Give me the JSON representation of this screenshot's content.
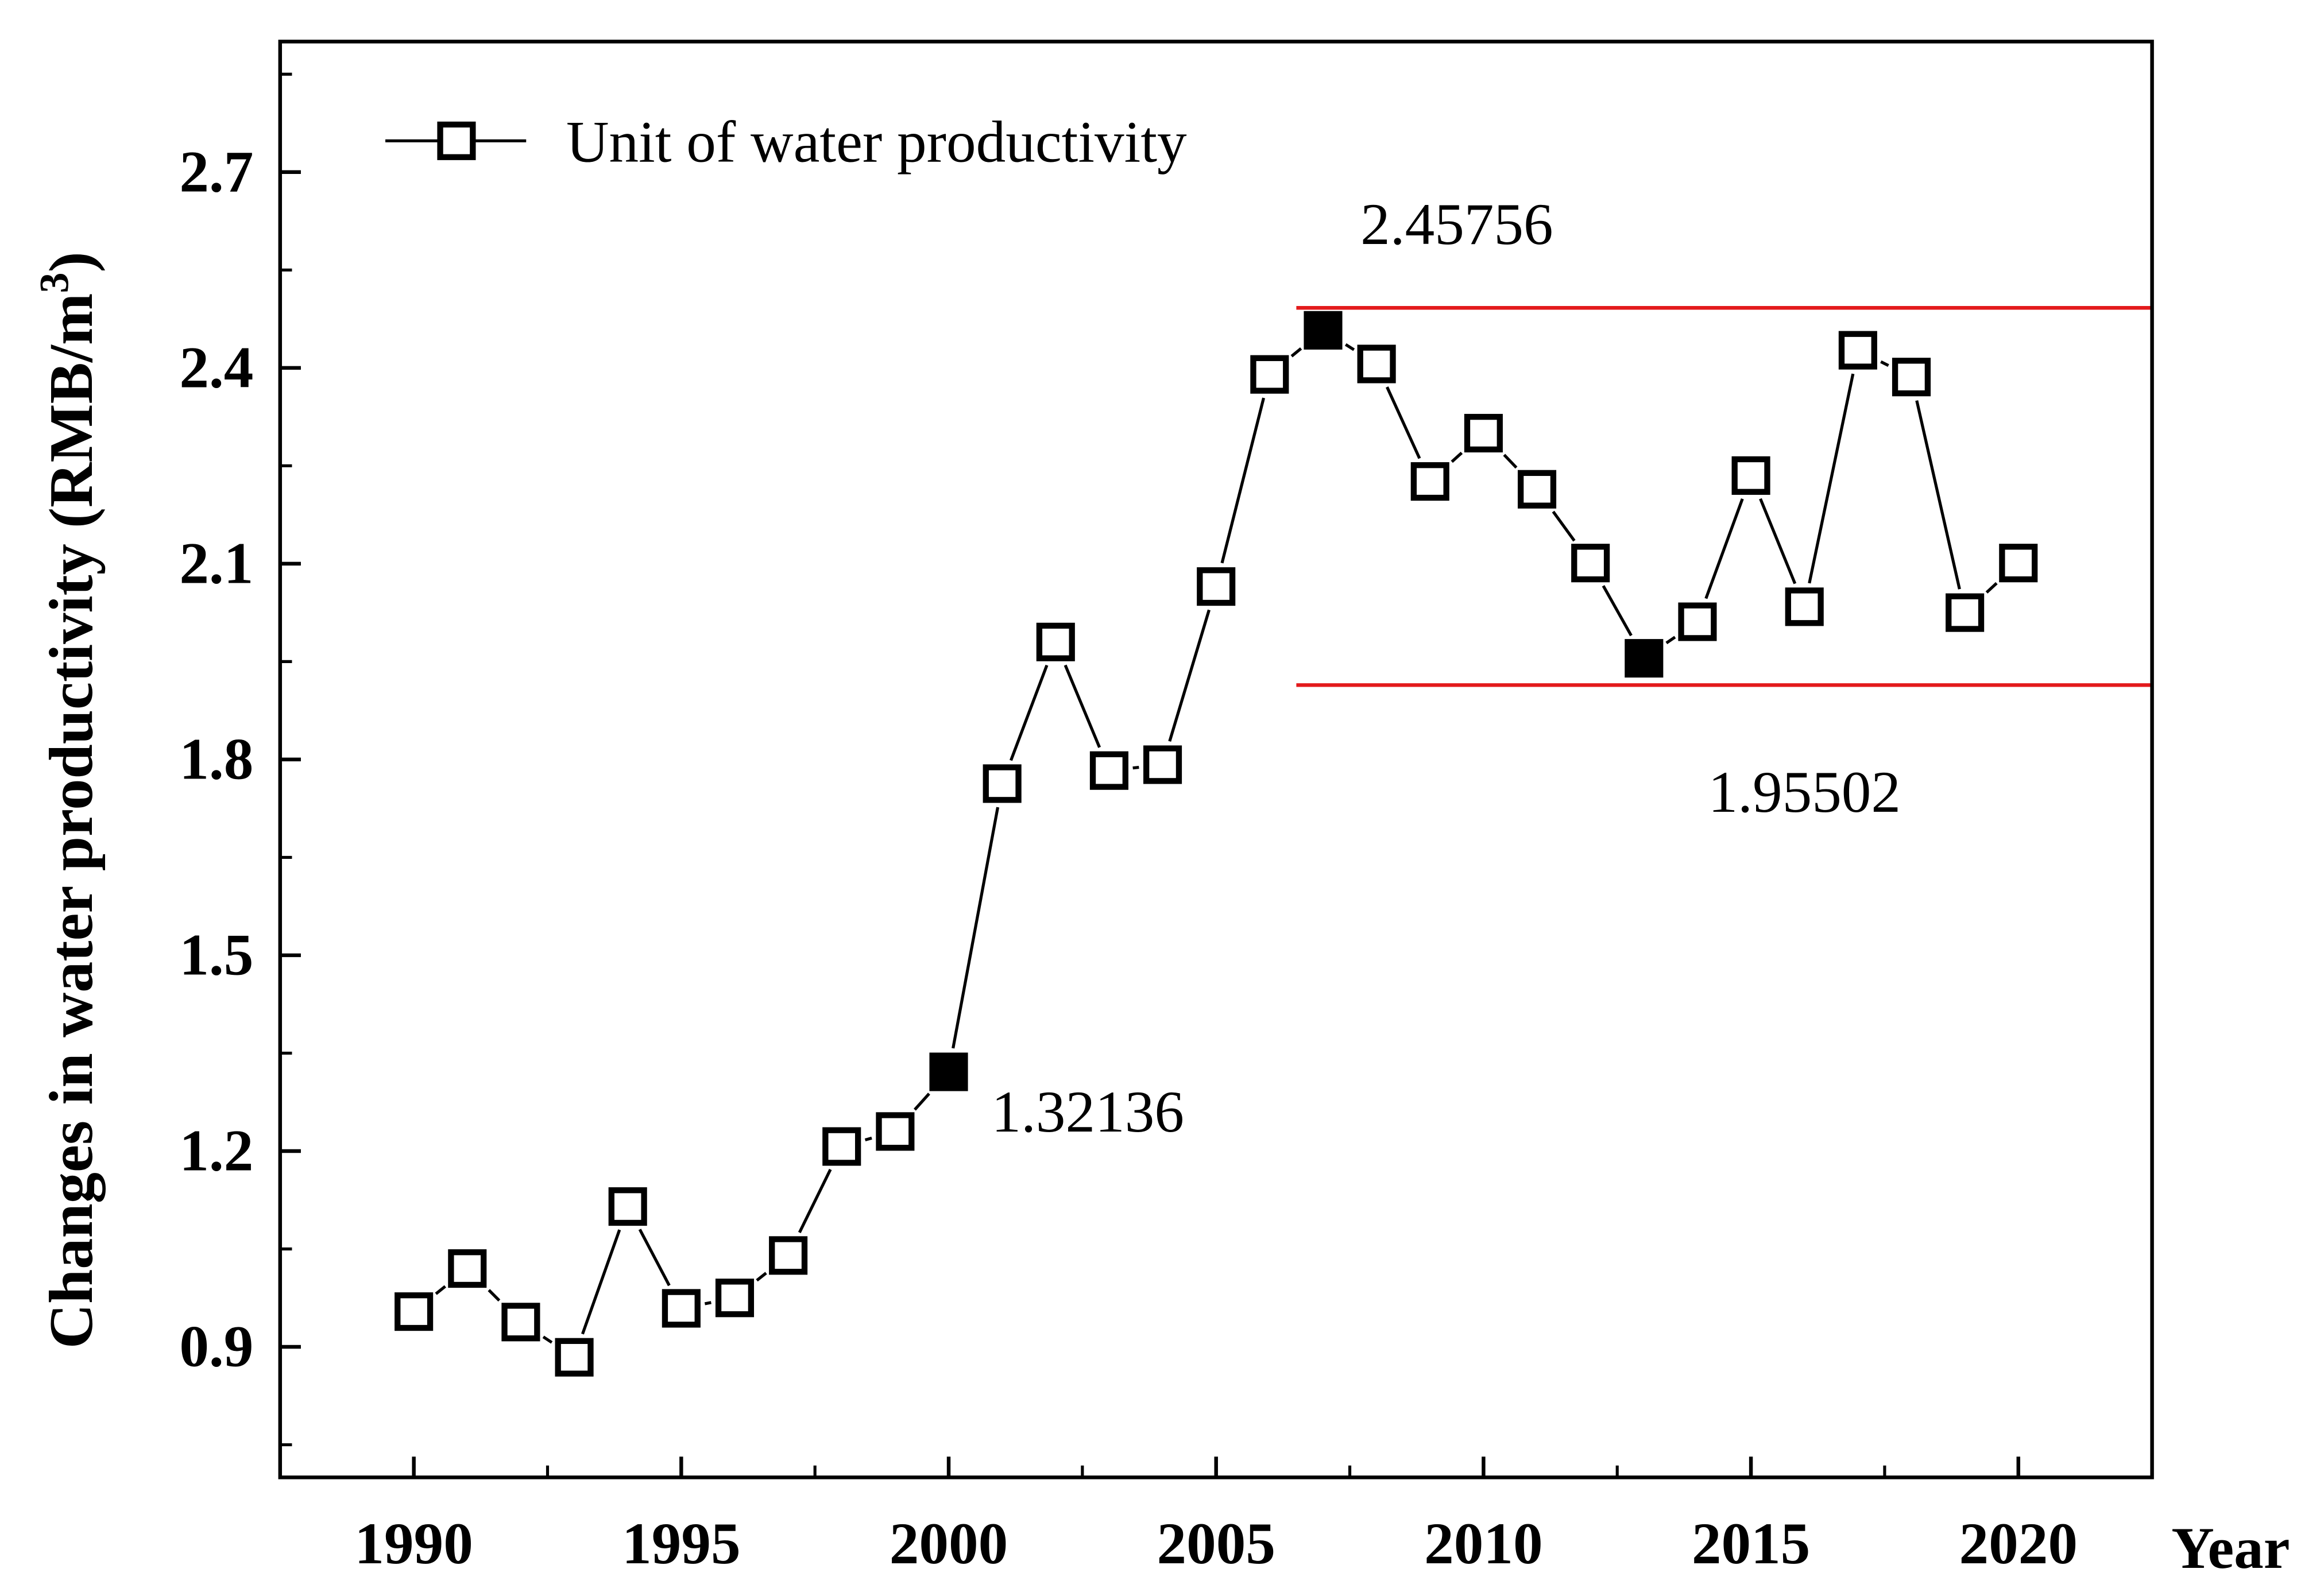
{
  "chart_data": {
    "type": "line",
    "title": "",
    "xlabel": "Year",
    "ylabel": "Changes in water productivity (RMB/m",
    "ylabel_sup": "3",
    "ylabel_close": ")",
    "xlim": [
      1987.5,
      2022.5
    ],
    "ylim": [
      0.7,
      2.9
    ],
    "xticks": [
      1990,
      1995,
      2000,
      2005,
      2010,
      2015,
      2020
    ],
    "xtick_labels": [
      "1990",
      "1995",
      "2000",
      "2005",
      "2010",
      "2015",
      "2020"
    ],
    "yticks": [
      0.9,
      1.2,
      1.5,
      1.8,
      2.1,
      2.4,
      2.7
    ],
    "ytick_labels": [
      "0.9",
      "1.2",
      "1.5",
      "1.8",
      "2.1",
      "2.4",
      "2.7"
    ],
    "grid": false,
    "legend": {
      "position": "top-left",
      "entries": [
        "Unit of water productivity"
      ]
    },
    "series": [
      {
        "name": "Unit of water productivity",
        "x": [
          1990,
          1991,
          1992,
          1993,
          1994,
          1995,
          1996,
          1997,
          1998,
          1999,
          2000,
          2001,
          2002,
          2003,
          2004,
          2005,
          2006,
          2007,
          2008,
          2009,
          2010,
          2011,
          2012,
          2013,
          2014,
          2015,
          2016,
          2017,
          2018,
          2019,
          2020
        ],
        "y": [
          0.954,
          1.02,
          0.938,
          0.884,
          1.115,
          0.959,
          0.975,
          1.04,
          1.207,
          1.23,
          1.32136,
          1.763,
          1.98,
          1.783,
          1.792,
          2.065,
          2.39,
          2.45756,
          2.406,
          2.226,
          2.3,
          2.214,
          2.101,
          1.95502,
          2.011,
          2.235,
          2.034,
          2.427,
          2.386,
          2.025,
          2.101
        ],
        "highlighted": [
          2000,
          2007,
          2013
        ],
        "color": "#000000"
      }
    ],
    "reference_lines": [
      {
        "y": 2.492,
        "x_from": 2006.5,
        "x_to": 2022.5,
        "color": "#e31a1c"
      },
      {
        "y": 1.914,
        "x_from": 2006.5,
        "x_to": 2022.5,
        "color": "#e31a1c"
      }
    ],
    "annotations": [
      {
        "text": "1.32136",
        "x": 2000.8,
        "y": 1.23
      },
      {
        "text": "2.45756",
        "x": 2007.7,
        "y": 2.59
      },
      {
        "text": "1.95502",
        "x": 2014.2,
        "y": 1.72
      }
    ]
  }
}
